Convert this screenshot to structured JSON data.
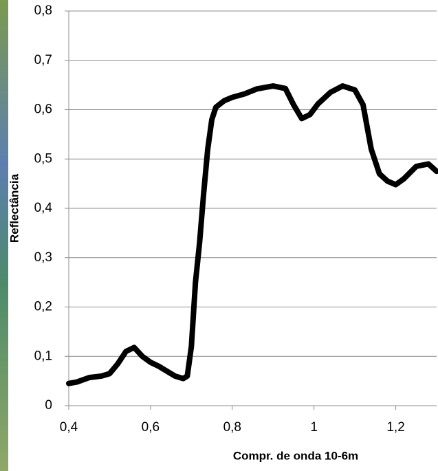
{
  "chart_data": {
    "type": "line",
    "x_label": "Compr. de onda 10-6m",
    "y_label": "Reflectância",
    "x": [
      0.4,
      0.42,
      0.45,
      0.48,
      0.5,
      0.52,
      0.54,
      0.56,
      0.58,
      0.6,
      0.62,
      0.64,
      0.66,
      0.68,
      0.69,
      0.7,
      0.71,
      0.72,
      0.73,
      0.74,
      0.75,
      0.76,
      0.78,
      0.8,
      0.83,
      0.86,
      0.9,
      0.93,
      0.95,
      0.97,
      0.99,
      1.01,
      1.04,
      1.07,
      1.1,
      1.12,
      1.14,
      1.16,
      1.18,
      1.2,
      1.22,
      1.25,
      1.28,
      1.3
    ],
    "series": [
      {
        "color": "#000000",
        "values": [
          0.045,
          0.048,
          0.057,
          0.06,
          0.065,
          0.085,
          0.11,
          0.118,
          0.1,
          0.088,
          0.08,
          0.07,
          0.06,
          0.055,
          0.06,
          0.12,
          0.25,
          0.33,
          0.43,
          0.52,
          0.58,
          0.605,
          0.618,
          0.625,
          0.632,
          0.642,
          0.648,
          0.643,
          0.61,
          0.582,
          0.59,
          0.612,
          0.635,
          0.648,
          0.64,
          0.61,
          0.52,
          0.47,
          0.455,
          0.448,
          0.46,
          0.485,
          0.49,
          0.475
        ]
      }
    ],
    "xlim": [
      0.4,
      1.3
    ],
    "xticks": [
      {
        "value": 0.4,
        "label": "0,4"
      },
      {
        "value": 0.6,
        "label": "0,6"
      },
      {
        "value": 0.8,
        "label": "0,8"
      },
      1,
      {
        "value": 1.2,
        "label": "1,2"
      }
    ],
    "ylim": [
      0,
      0.8
    ],
    "yticks": [
      0,
      {
        "value": 0.1,
        "label": "0,1"
      },
      {
        "value": 0.2,
        "label": "0,2"
      },
      {
        "value": 0.3,
        "label": "0,3"
      },
      {
        "value": 0.4,
        "label": "0,4"
      },
      {
        "value": 0.5,
        "label": "0,5"
      },
      {
        "value": 0.6,
        "label": "0,6"
      },
      {
        "value": 0.7,
        "label": "0,7"
      },
      {
        "value": 0.8,
        "label": "0,8"
      }
    ],
    "grid": true
  }
}
